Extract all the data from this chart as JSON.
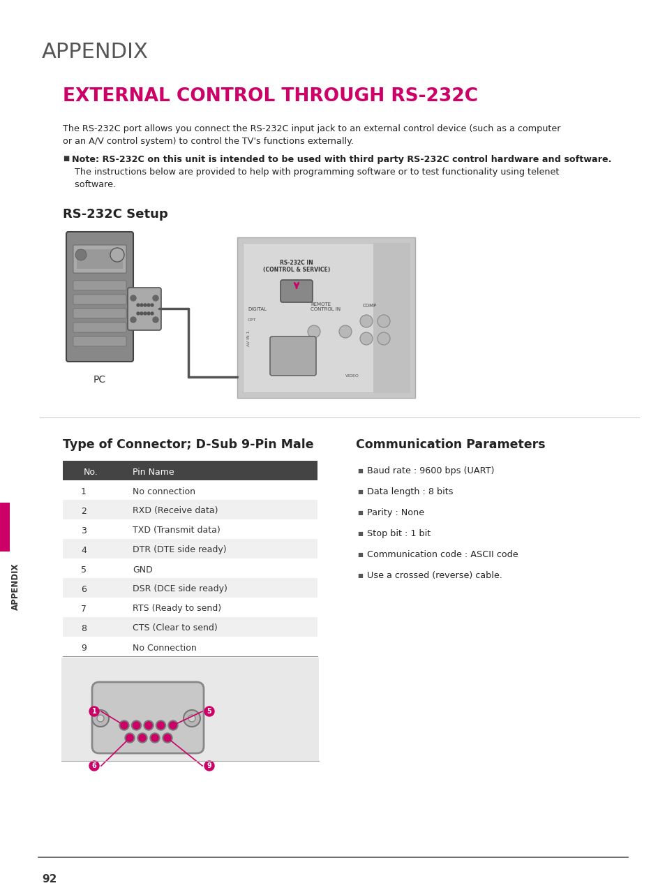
{
  "bg_color": "#ffffff",
  "appendix_label": "APPENDIX",
  "appendix_label_color": "#555555",
  "title": "EXTERNAL CONTROL THROUGH RS-232C",
  "title_color": "#cc0066",
  "section1_title": "RS-232C Setup",
  "section1_title_color": "#222222",
  "body_text1a": "The RS-232C port allows you connect the RS-232C input jack to an external control device (such as a computer",
  "body_text1b": "or an A/V control system) to control the TV's functions externally.",
  "bullet_text1": "Note: RS-232C on this unit is intended to be used with third party RS-232C control hardware and software.",
  "bullet_text2a": " The instructions below are provided to help with programming software or to test functionality using telenet",
  "bullet_text2b": " software.",
  "connector_title": "Type of Connector; D-Sub 9-Pin Male",
  "comm_title": "Communication Parameters",
  "table_header_bg": "#444444",
  "table_header_fg": "#ffffff",
  "table_rows": [
    [
      "1",
      "No connection"
    ],
    [
      "2",
      "RXD (Receive data)"
    ],
    [
      "3",
      "TXD (Transmit data)"
    ],
    [
      "4",
      "DTR (DTE side ready)"
    ],
    [
      "5",
      "GND"
    ],
    [
      "6",
      "DSR (DCE side ready)"
    ],
    [
      "7",
      "RTS (Ready to send)"
    ],
    [
      "8",
      "CTS (Clear to send)"
    ],
    [
      "9",
      "No Connection"
    ]
  ],
  "comm_bullets": [
    "Baud rate : 9600 bps (UART)",
    "Data length : 8 bits",
    "Parity : None",
    "Stop bit : 1 bit",
    "Communication code : ASCII code",
    "Use a crossed (reverse) cable."
  ],
  "side_label": "APPENDIX",
  "side_label_color": "#333333",
  "page_number": "92",
  "accent_color": "#cc0066",
  "table_row_alt": "#f0f0f0",
  "table_row_main": "#ffffff",
  "pc_label": "PC",
  "tv_rs232c_label1": "RS-232C IN",
  "tv_rs232c_label2": "(CONTROL & SERVICE)",
  "tv_digital_label": "DIGITAL",
  "tv_remote_label": "REMOTE\nCONTROL IN",
  "tv_comp_label": "COMP"
}
